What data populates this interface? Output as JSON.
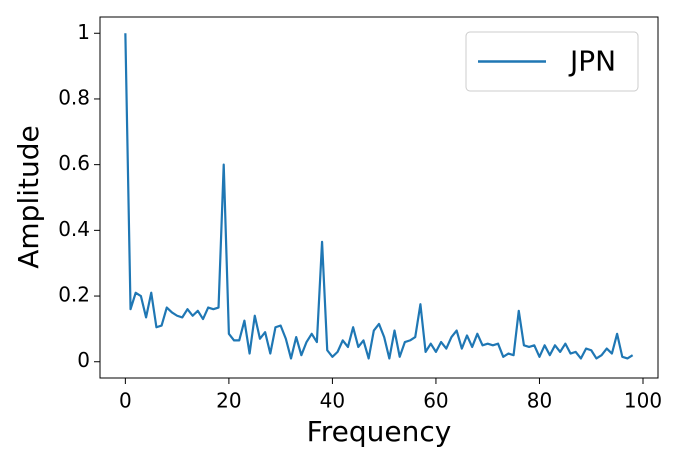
{
  "chart_data": {
    "type": "line",
    "x_label": "Frequency",
    "y_label": "Amplitude",
    "x": [
      0,
      1,
      2,
      3,
      4,
      5,
      6,
      7,
      8,
      9,
      10,
      11,
      12,
      13,
      14,
      15,
      16,
      17,
      18,
      19,
      20,
      21,
      22,
      23,
      24,
      25,
      26,
      27,
      28,
      29,
      30,
      31,
      32,
      33,
      34,
      35,
      36,
      37,
      38,
      39,
      40,
      41,
      42,
      43,
      44,
      45,
      46,
      47,
      48,
      49,
      50,
      51,
      52,
      53,
      54,
      55,
      56,
      57,
      58,
      59,
      60,
      61,
      62,
      63,
      64,
      65,
      66,
      67,
      68,
      69,
      70,
      71,
      72,
      73,
      74,
      75,
      76,
      77,
      78,
      79,
      80,
      81,
      82,
      83,
      84,
      85,
      86,
      87,
      88,
      89,
      90,
      91,
      92,
      93,
      94,
      95,
      96,
      97,
      98
    ],
    "series": [
      {
        "name": "JPN",
        "color": "#1f77b4",
        "values": [
          1.0,
          0.16,
          0.21,
          0.2,
          0.135,
          0.21,
          0.105,
          0.11,
          0.165,
          0.15,
          0.14,
          0.135,
          0.16,
          0.14,
          0.155,
          0.13,
          0.165,
          0.16,
          0.165,
          0.6,
          0.085,
          0.065,
          0.065,
          0.125,
          0.025,
          0.14,
          0.07,
          0.09,
          0.025,
          0.105,
          0.11,
          0.07,
          0.01,
          0.075,
          0.02,
          0.06,
          0.085,
          0.06,
          0.365,
          0.035,
          0.015,
          0.03,
          0.065,
          0.045,
          0.105,
          0.045,
          0.065,
          0.01,
          0.095,
          0.115,
          0.075,
          0.01,
          0.095,
          0.015,
          0.06,
          0.065,
          0.075,
          0.175,
          0.03,
          0.055,
          0.03,
          0.06,
          0.04,
          0.075,
          0.095,
          0.04,
          0.08,
          0.045,
          0.085,
          0.05,
          0.055,
          0.05,
          0.055,
          0.015,
          0.025,
          0.02,
          0.155,
          0.05,
          0.045,
          0.05,
          0.015,
          0.05,
          0.02,
          0.05,
          0.03,
          0.055,
          0.025,
          0.03,
          0.01,
          0.04,
          0.035,
          0.01,
          0.02,
          0.04,
          0.025,
          0.085,
          0.015,
          0.01,
          0.02
        ]
      }
    ],
    "xlim": [
      -4.9,
      102.9
    ],
    "ylim": [
      -0.0495,
      1.0495
    ],
    "xticks": [
      0,
      20,
      40,
      60,
      80,
      100
    ],
    "yticks": [
      0,
      0.2,
      0.4,
      0.6,
      0.8,
      1
    ],
    "legend": "upper right"
  }
}
